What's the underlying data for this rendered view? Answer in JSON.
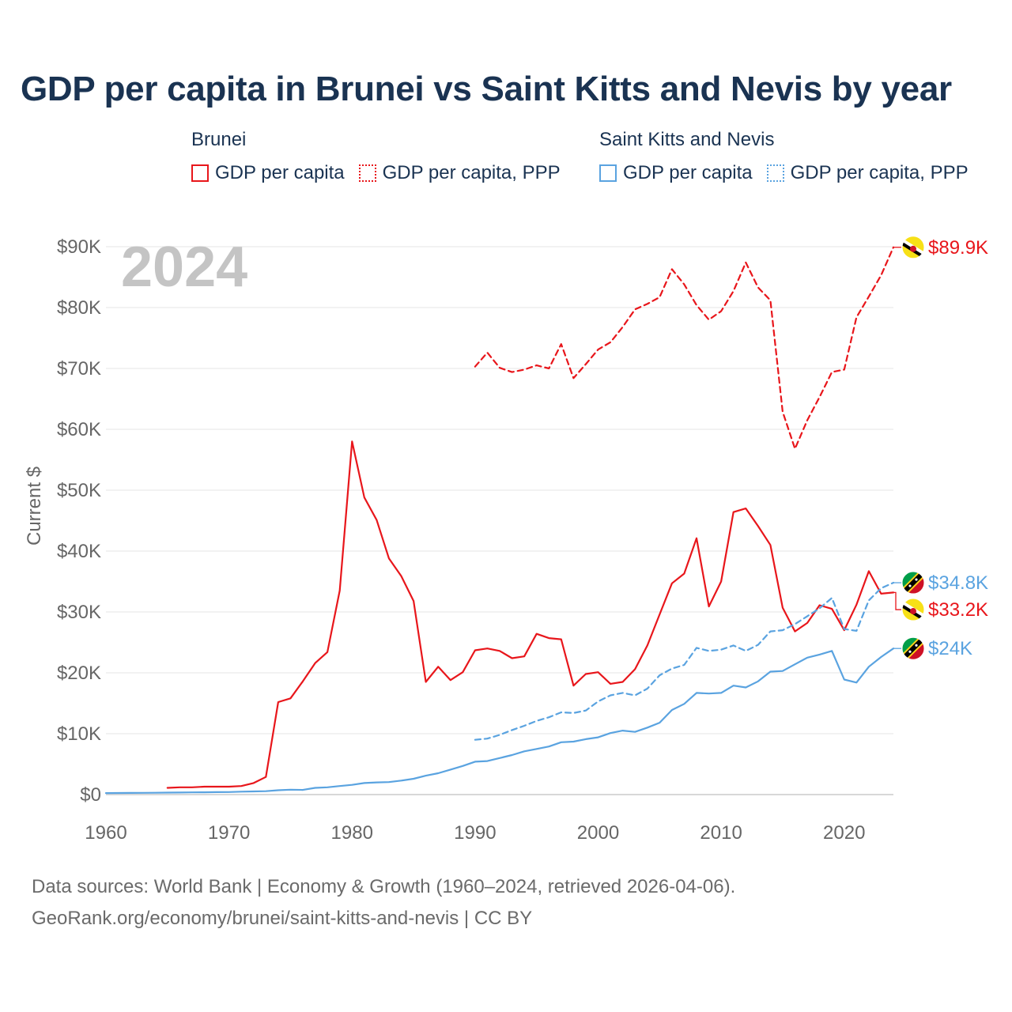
{
  "chart_data": {
    "type": "line",
    "title": "GDP per capita in Brunei vs Saint Kitts and Nevis by year",
    "year_label": "2024",
    "ylabel": "Current $",
    "xlabel": "",
    "xlim": [
      1960,
      2024
    ],
    "ylim": [
      0,
      90000
    ],
    "x_ticks": [
      1960,
      1970,
      1980,
      1990,
      2000,
      2010,
      2020
    ],
    "y_ticks": [
      {
        "value": 0,
        "label": "$0"
      },
      {
        "value": 10000,
        "label": "$10K"
      },
      {
        "value": 20000,
        "label": "$20K"
      },
      {
        "value": 30000,
        "label": "$30K"
      },
      {
        "value": 40000,
        "label": "$40K"
      },
      {
        "value": 50000,
        "label": "$50K"
      },
      {
        "value": 60000,
        "label": "$60K"
      },
      {
        "value": 70000,
        "label": "$70K"
      },
      {
        "value": 80000,
        "label": "$80K"
      },
      {
        "value": 90000,
        "label": "$90K"
      }
    ],
    "legend": [
      {
        "group": "Brunei",
        "items": [
          {
            "label": "GDP per capita",
            "color": "#e8161b",
            "style": "solid"
          },
          {
            "label": "GDP per capita, PPP",
            "color": "#e8161b",
            "style": "dotted"
          }
        ]
      },
      {
        "group": "Saint Kitts and Nevis",
        "items": [
          {
            "label": "GDP per capita",
            "color": "#5aa3e0",
            "style": "solid"
          },
          {
            "label": "GDP per capita, PPP",
            "color": "#5aa3e0",
            "style": "dotted"
          }
        ]
      }
    ],
    "series": [
      {
        "name": "Brunei GDP per capita",
        "color": "#e8161b",
        "dash": false,
        "end_label": "$33.2K",
        "flag": "brunei",
        "x": [
          1965,
          1966,
          1967,
          1968,
          1969,
          1970,
          1971,
          1972,
          1973,
          1974,
          1975,
          1976,
          1977,
          1978,
          1979,
          1980,
          1981,
          1982,
          1983,
          1984,
          1985,
          1986,
          1987,
          1988,
          1989,
          1990,
          1991,
          1992,
          1993,
          1994,
          1995,
          1996,
          1997,
          1998,
          1999,
          2000,
          2001,
          2002,
          2003,
          2004,
          2005,
          2006,
          2007,
          2008,
          2009,
          2010,
          2011,
          2012,
          2013,
          2014,
          2015,
          2016,
          2017,
          2018,
          2019,
          2020,
          2021,
          2022,
          2023,
          2024
        ],
        "values": [
          1100,
          1200,
          1200,
          1300,
          1300,
          1300,
          1400,
          1900,
          2900,
          15200,
          15800,
          18600,
          21600,
          23400,
          33500,
          58000,
          48800,
          45100,
          38800,
          35900,
          31800,
          18500,
          21000,
          18800,
          20100,
          23700,
          24000,
          23600,
          22400,
          22700,
          26400,
          25700,
          25500,
          17900,
          19800,
          20100,
          18200,
          18500,
          20600,
          24500,
          29600,
          34700,
          36300,
          42100,
          30900,
          35000,
          46400,
          47000,
          44100,
          41000,
          30700,
          26800,
          28200,
          31100,
          30500,
          27000,
          31200,
          36700,
          33000,
          33200
        ]
      },
      {
        "name": "Brunei GDP per capita, PPP",
        "color": "#e8161b",
        "dash": true,
        "end_label": "$89.9K",
        "flag": "brunei",
        "x": [
          1990,
          1991,
          1992,
          1993,
          1994,
          1995,
          1996,
          1997,
          1998,
          1999,
          2000,
          2001,
          2002,
          2003,
          2004,
          2005,
          2006,
          2007,
          2008,
          2009,
          2010,
          2011,
          2012,
          2013,
          2014,
          2015,
          2016,
          2017,
          2018,
          2019,
          2020,
          2021,
          2022,
          2023,
          2024
        ],
        "values": [
          70300,
          72600,
          70100,
          69400,
          69800,
          70500,
          70000,
          74000,
          68400,
          70700,
          73100,
          74300,
          76800,
          79700,
          80600,
          81700,
          86300,
          83800,
          80400,
          78000,
          79400,
          82700,
          87400,
          83300,
          81200,
          62900,
          56800,
          61500,
          65300,
          69400,
          69800,
          78400,
          81800,
          85300,
          89900
        ]
      },
      {
        "name": "Saint Kitts and Nevis GDP per capita",
        "color": "#5aa3e0",
        "dash": false,
        "end_label": "$24K",
        "flag": "skn",
        "x": [
          1960,
          1961,
          1962,
          1963,
          1964,
          1965,
          1966,
          1967,
          1968,
          1969,
          1970,
          1971,
          1972,
          1973,
          1974,
          1975,
          1976,
          1977,
          1978,
          1979,
          1980,
          1981,
          1982,
          1983,
          1984,
          1985,
          1986,
          1987,
          1988,
          1989,
          1990,
          1991,
          1992,
          1993,
          1994,
          1995,
          1996,
          1997,
          1998,
          1999,
          2000,
          2001,
          2002,
          2003,
          2004,
          2005,
          2006,
          2007,
          2008,
          2009,
          2010,
          2011,
          2012,
          2013,
          2014,
          2015,
          2016,
          2017,
          2018,
          2019,
          2020,
          2021,
          2022,
          2023,
          2024
        ],
        "values": [
          250,
          260,
          270,
          280,
          300,
          320,
          340,
          360,
          380,
          400,
          420,
          480,
          520,
          560,
          720,
          800,
          760,
          1100,
          1200,
          1400,
          1600,
          1900,
          2000,
          2050,
          2300,
          2600,
          3100,
          3500,
          4100,
          4700,
          5400,
          5500,
          6000,
          6500,
          7100,
          7500,
          7900,
          8600,
          8700,
          9100,
          9400,
          10100,
          10500,
          10300,
          11000,
          11800,
          13900,
          14900,
          16700,
          16600,
          16700,
          17900,
          17600,
          18600,
          20200,
          20300,
          21400,
          22500,
          23000,
          23600,
          18900,
          18400,
          21000,
          22600,
          24000
        ]
      },
      {
        "name": "Saint Kitts and Nevis GDP per capita, PPP",
        "color": "#5aa3e0",
        "dash": true,
        "end_label": "$34.8K",
        "flag": "skn",
        "x": [
          1990,
          1991,
          1992,
          1993,
          1994,
          1995,
          1996,
          1997,
          1998,
          1999,
          2000,
          2001,
          2002,
          2003,
          2004,
          2005,
          2006,
          2007,
          2008,
          2009,
          2010,
          2011,
          2012,
          2013,
          2014,
          2015,
          2016,
          2017,
          2018,
          2019,
          2020,
          2021,
          2022,
          2023,
          2024
        ],
        "values": [
          9000,
          9200,
          9800,
          10600,
          11300,
          12100,
          12700,
          13500,
          13400,
          13800,
          15300,
          16300,
          16700,
          16300,
          17400,
          19600,
          20700,
          21300,
          24100,
          23600,
          23800,
          24500,
          23600,
          24600,
          26800,
          27000,
          28000,
          29300,
          30600,
          32300,
          27200,
          26900,
          31900,
          33900,
          34800
        ]
      }
    ]
  },
  "footer": {
    "line1": "Data sources: World Bank | Economy & Growth (1960–2024, retrieved 2026-04-06).",
    "line2": "GeoRank.org/economy/brunei/saint-kitts-and-nevis | CC BY"
  }
}
